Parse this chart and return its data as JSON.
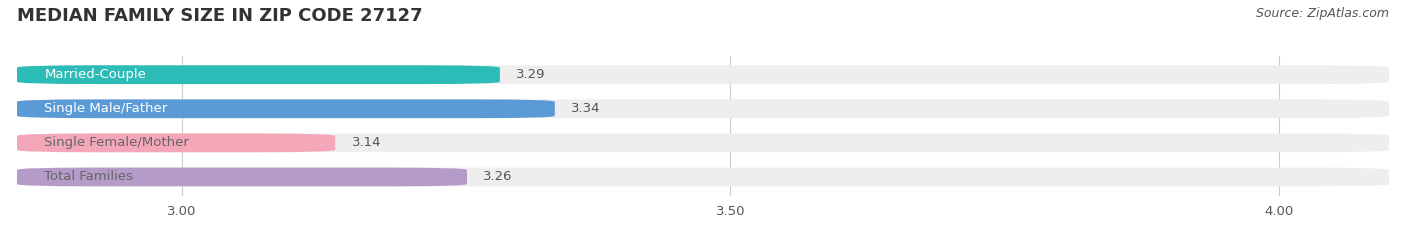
{
  "title": "MEDIAN FAMILY SIZE IN ZIP CODE 27127",
  "source": "Source: ZipAtlas.com",
  "categories": [
    "Married-Couple",
    "Single Male/Father",
    "Single Female/Mother",
    "Total Families"
  ],
  "values": [
    3.29,
    3.34,
    3.14,
    3.26
  ],
  "bar_colors": [
    "#2bbcb8",
    "#5b9bd5",
    "#f4a7b9",
    "#b59cc8"
  ],
  "label_text_colors": [
    "white",
    "white",
    "#666666",
    "#666666"
  ],
  "bar_bg_color": "#eeeeee",
  "xlim": [
    2.85,
    4.1
  ],
  "xticks": [
    3.0,
    3.5,
    4.0
  ],
  "bar_height": 0.55,
  "title_fontsize": 13,
  "label_fontsize": 9.5,
  "value_fontsize": 9.5,
  "tick_fontsize": 9.5,
  "source_fontsize": 9,
  "background_color": "#ffffff",
  "text_color": "#555555",
  "title_color": "#333333"
}
